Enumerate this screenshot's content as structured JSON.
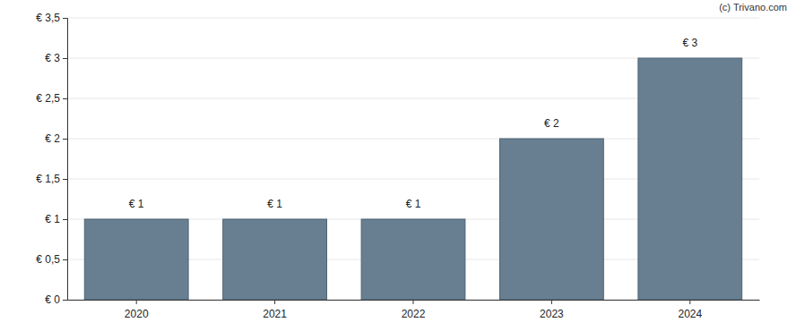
{
  "chart_data": {
    "type": "bar",
    "annotation": "(c) Trivano.com",
    "categories": [
      "2020",
      "2021",
      "2022",
      "2023",
      "2024"
    ],
    "values": [
      1,
      1,
      1,
      2,
      3
    ],
    "value_labels": [
      "€ 1",
      "€ 1",
      "€ 1",
      "€ 2",
      "€ 3"
    ],
    "data_labels": true,
    "color": "#677f91",
    "ylim": [
      0,
      3.5
    ],
    "yticks": [
      {
        "value": 0,
        "label": "€ 0"
      },
      {
        "value": 0.5,
        "label": "€ 0,5"
      },
      {
        "value": 1,
        "label": "€ 1"
      },
      {
        "value": 1.5,
        "label": "€ 1,5"
      },
      {
        "value": 2,
        "label": "€ 2"
      },
      {
        "value": 2.5,
        "label": "€ 2,5"
      },
      {
        "value": 3,
        "label": "€ 3"
      },
      {
        "value": 3.5,
        "label": "€ 3,5"
      }
    ],
    "grid": true
  }
}
